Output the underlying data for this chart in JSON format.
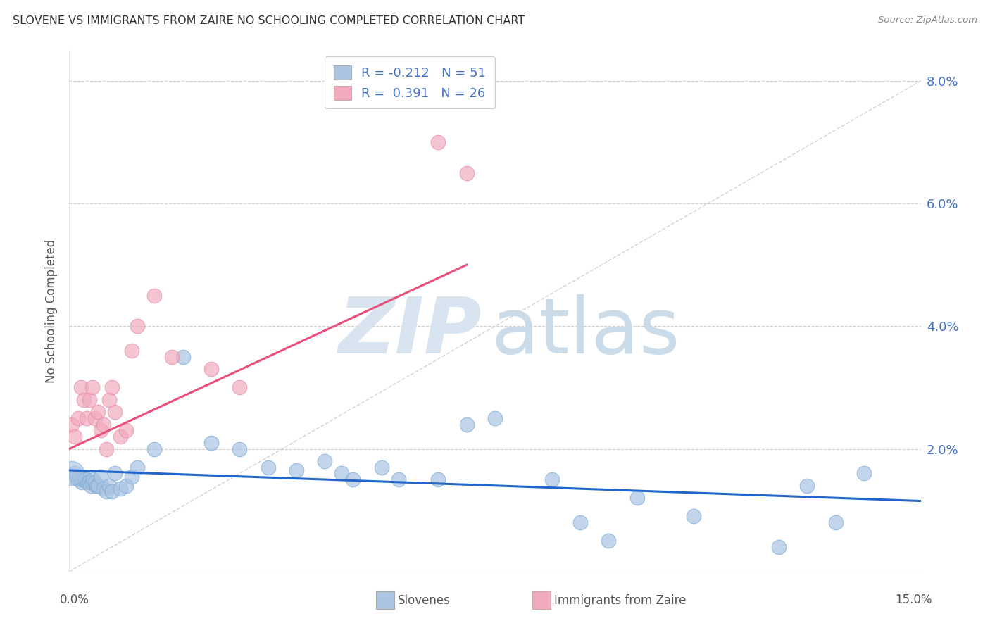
{
  "title": "SLOVENE VS IMMIGRANTS FROM ZAIRE NO SCHOOLING COMPLETED CORRELATION CHART",
  "source": "Source: ZipAtlas.com",
  "ylabel": "No Schooling Completed",
  "yticks": [
    0.0,
    2.0,
    4.0,
    6.0,
    8.0
  ],
  "ytick_labels": [
    "",
    "2.0%",
    "4.0%",
    "6.0%",
    "8.0%"
  ],
  "xlim": [
    0.0,
    15.0
  ],
  "ylim": [
    0.0,
    8.5
  ],
  "legend_R": [
    "-0.212",
    "0.391"
  ],
  "legend_N": [
    "51",
    "26"
  ],
  "slovene_color": "#aac4e2",
  "zaire_color": "#f2abbe",
  "slovene_line_color": "#2266cc",
  "zaire_line_color": "#e8507a",
  "grid_color": "#d0d0d0",
  "background_color": "#ffffff",
  "slovene_x": [
    0.05,
    0.1,
    0.12,
    0.15,
    0.18,
    0.2,
    0.22,
    0.25,
    0.28,
    0.3,
    0.32,
    0.35,
    0.38,
    0.4,
    0.42,
    0.45,
    0.48,
    0.5,
    0.55,
    0.6,
    0.65,
    0.7,
    0.75,
    0.8,
    0.9,
    1.0,
    1.1,
    1.2,
    1.5,
    2.0,
    2.5,
    3.0,
    3.5,
    4.0,
    4.5,
    4.8,
    5.0,
    5.5,
    5.8,
    6.5,
    7.0,
    7.5,
    8.5,
    9.0,
    9.5,
    10.0,
    11.0,
    12.5,
    13.0,
    13.5,
    14.0
  ],
  "slovene_y": [
    1.55,
    1.6,
    1.55,
    1.5,
    1.55,
    1.5,
    1.45,
    1.5,
    1.5,
    1.5,
    1.45,
    1.45,
    1.4,
    1.45,
    1.5,
    1.45,
    1.4,
    1.4,
    1.55,
    1.35,
    1.3,
    1.4,
    1.3,
    1.6,
    1.35,
    1.4,
    1.55,
    1.7,
    2.0,
    3.5,
    2.1,
    2.0,
    1.7,
    1.65,
    1.8,
    1.6,
    1.5,
    1.7,
    1.5,
    1.5,
    2.4,
    2.5,
    1.5,
    0.8,
    0.5,
    1.2,
    0.9,
    0.4,
    1.4,
    0.8,
    1.6
  ],
  "zaire_x": [
    0.05,
    0.1,
    0.15,
    0.2,
    0.25,
    0.3,
    0.35,
    0.4,
    0.45,
    0.5,
    0.55,
    0.6,
    0.65,
    0.7,
    0.75,
    0.8,
    0.9,
    1.0,
    1.1,
    1.2,
    1.5,
    1.8,
    2.5,
    3.0,
    6.5,
    7.0
  ],
  "zaire_y": [
    2.4,
    2.2,
    2.5,
    3.0,
    2.8,
    2.5,
    2.8,
    3.0,
    2.5,
    2.6,
    2.3,
    2.4,
    2.0,
    2.8,
    3.0,
    2.6,
    2.2,
    2.3,
    3.6,
    4.0,
    4.5,
    3.5,
    3.3,
    3.0,
    7.0,
    6.5
  ]
}
